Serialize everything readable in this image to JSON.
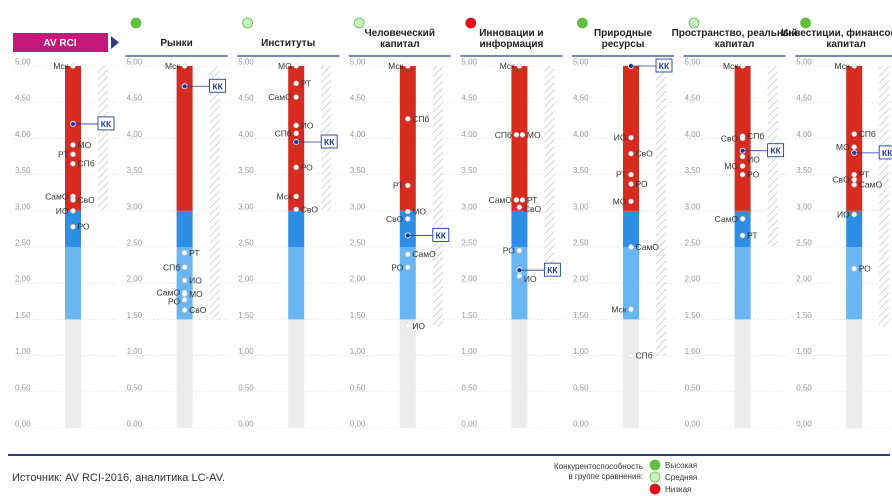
{
  "chart_data": {
    "type": "range-dot",
    "badge": "AV RCI",
    "ylim": [
      0,
      5
    ],
    "yticks": [
      "0,00",
      "0,50",
      "1,00",
      "1,50",
      "2,00",
      "2,50",
      "3,00",
      "3,50",
      "4,00",
      "4,50",
      "5,00"
    ],
    "bands": [
      {
        "from": 0,
        "to": 1.5,
        "color": "#ececec",
        "level": "low"
      },
      {
        "from": 1.5,
        "to": 2.5,
        "color": "#6ab6f2",
        "level": "medium-low"
      },
      {
        "from": 2.5,
        "to": 3.0,
        "color": "#2e8ee6",
        "level": "medium"
      },
      {
        "from": 3.0,
        "to": 5.0,
        "color": "#d62c1f",
        "level": "high"
      }
    ],
    "panels": [
      {
        "title": "",
        "status": null,
        "scale": [
          3.0,
          5.0
        ],
        "points": [
          {
            "label": "Мск",
            "value": 5.0,
            "side": "left"
          },
          {
            "label": "КК",
            "value": 4.2,
            "side": "right",
            "highlight": true
          },
          {
            "label": "МО",
            "value": 3.91,
            "side": "right"
          },
          {
            "label": "РТ",
            "value": 3.78,
            "side": "left"
          },
          {
            "label": "СПб",
            "value": 3.65,
            "side": "right"
          },
          {
            "label": "СамО",
            "value": 3.2,
            "side": "left"
          },
          {
            "label": "СвО",
            "value": 3.15,
            "side": "right"
          },
          {
            "label": "ИО",
            "value": 3.0,
            "side": "left"
          },
          {
            "label": "РО",
            "value": 2.78,
            "side": "right"
          }
        ]
      },
      {
        "title": "Рынки",
        "status": "high",
        "scale": [
          1.5,
          5.0
        ],
        "points": [
          {
            "label": "Мск",
            "value": 5.0,
            "side": "left"
          },
          {
            "label": "КК",
            "value": 4.72,
            "side": "right",
            "highlight": true
          },
          {
            "label": "РТ",
            "value": 2.42,
            "side": "right"
          },
          {
            "label": "СПб",
            "value": 2.22,
            "side": "left"
          },
          {
            "label": "ИО",
            "value": 2.04,
            "side": "right"
          },
          {
            "label": "СамО",
            "value": 1.87,
            "side": "left"
          },
          {
            "label": "МО",
            "value": 1.85,
            "side": "right"
          },
          {
            "label": "РО",
            "value": 1.77,
            "side": "left"
          },
          {
            "label": "СвО",
            "value": 1.63,
            "side": "right"
          }
        ]
      },
      {
        "title": "Институты",
        "status": "medium",
        "scale": [
          3.0,
          5.0
        ],
        "points": [
          {
            "label": "МО",
            "value": 5.0,
            "side": "left"
          },
          {
            "label": "РТ",
            "value": 4.76,
            "side": "right"
          },
          {
            "label": "СамО",
            "value": 4.57,
            "side": "left"
          },
          {
            "label": "ИО",
            "value": 4.18,
            "side": "right"
          },
          {
            "label": "СПб",
            "value": 4.07,
            "side": "left"
          },
          {
            "label": "КК",
            "value": 3.95,
            "side": "right",
            "highlight": true
          },
          {
            "label": "РО",
            "value": 3.6,
            "side": "right"
          },
          {
            "label": "Мск",
            "value": 3.2,
            "side": "left"
          },
          {
            "label": "СвО",
            "value": 3.02,
            "side": "right"
          }
        ]
      },
      {
        "title": "Человеческий капитал",
        "status": "medium",
        "scale": [
          1.4,
          5.0
        ],
        "points": [
          {
            "label": "Мск",
            "value": 5.0,
            "side": "left"
          },
          {
            "label": "СПб",
            "value": 4.27,
            "side": "right"
          },
          {
            "label": "РТ",
            "value": 3.35,
            "side": "left"
          },
          {
            "label": "МО",
            "value": 2.99,
            "side": "right"
          },
          {
            "label": "СвО",
            "value": 2.89,
            "side": "left"
          },
          {
            "label": "КК",
            "value": 2.66,
            "side": "right",
            "highlight": true
          },
          {
            "label": "СамО",
            "value": 2.4,
            "side": "right"
          },
          {
            "label": "РО",
            "value": 2.22,
            "side": "left"
          },
          {
            "label": "ИО",
            "value": 1.41,
            "side": "right"
          }
        ]
      },
      {
        "title": "Инновации и информация",
        "status": "low",
        "scale": [
          2.1,
          5.0
        ],
        "points": [
          {
            "label": "Мск",
            "value": 5.0,
            "side": "left"
          },
          {
            "label": "СПб",
            "value": 4.05,
            "side": "left"
          },
          {
            "label": "МО",
            "value": 4.05,
            "side": "right"
          },
          {
            "label": "СамО",
            "value": 3.15,
            "side": "left"
          },
          {
            "label": "РТ",
            "value": 3.15,
            "side": "right"
          },
          {
            "label": "СвО",
            "value": 3.05,
            "side": "right"
          },
          {
            "label": "РО",
            "value": 2.45,
            "side": "left"
          },
          {
            "label": "КК",
            "value": 2.18,
            "side": "right",
            "highlight": true
          },
          {
            "label": "ИО",
            "value": 2.1,
            "side": "right"
          }
        ]
      },
      {
        "title": "Природные ресурсы",
        "status": "high",
        "scale": [
          1.0,
          5.0
        ],
        "points": [
          {
            "label": "КК",
            "value": 5.0,
            "side": "right",
            "highlight": true
          },
          {
            "label": "ИО",
            "value": 4.01,
            "side": "left"
          },
          {
            "label": "СвО",
            "value": 3.79,
            "side": "right"
          },
          {
            "label": "РТ",
            "value": 3.5,
            "side": "left"
          },
          {
            "label": "РО",
            "value": 3.37,
            "side": "right"
          },
          {
            "label": "МО",
            "value": 3.13,
            "side": "left"
          },
          {
            "label": "СамО",
            "value": 2.5,
            "side": "right"
          },
          {
            "label": "Мск",
            "value": 1.64,
            "side": "left"
          },
          {
            "label": "СПб",
            "value": 1.0,
            "side": "right"
          }
        ]
      },
      {
        "title": "Пространство, реальный капитал",
        "status": "medium",
        "scale": [
          2.5,
          5.0
        ],
        "points": [
          {
            "label": "Мск",
            "value": 5.0,
            "side": "left"
          },
          {
            "label": "СПб",
            "value": 4.03,
            "side": "right"
          },
          {
            "label": "СвО",
            "value": 4.0,
            "side": "left"
          },
          {
            "label": "КК",
            "value": 3.83,
            "side": "right",
            "highlight": true
          },
          {
            "label": "ИО",
            "value": 3.75,
            "side": "right"
          },
          {
            "label": "МО",
            "value": 3.62,
            "side": "left"
          },
          {
            "label": "РО",
            "value": 3.5,
            "side": "right"
          },
          {
            "label": "СамО",
            "value": 2.89,
            "side": "left"
          },
          {
            "label": "РТ",
            "value": 2.66,
            "side": "right"
          }
        ]
      },
      {
        "title": "Инвестиции, финансовый капитал",
        "status": "high",
        "scale": [
          1.4,
          5.0
        ],
        "points": [
          {
            "label": "Мск",
            "value": 5.0,
            "side": "left"
          },
          {
            "label": "СПб",
            "value": 4.06,
            "side": "right"
          },
          {
            "label": "МО",
            "value": 3.88,
            "side": "left"
          },
          {
            "label": "КК",
            "value": 3.8,
            "side": "right",
            "highlight": true
          },
          {
            "label": "РТ",
            "value": 3.5,
            "side": "right"
          },
          {
            "label": "СвО",
            "value": 3.43,
            "side": "left"
          },
          {
            "label": "СамО",
            "value": 3.36,
            "side": "right"
          },
          {
            "label": "ИО",
            "value": 2.95,
            "side": "left"
          },
          {
            "label": "РО",
            "value": 2.2,
            "side": "right"
          }
        ]
      }
    ],
    "legend": {
      "title": "Конкурентоспособность в группе сравнения:",
      "items": [
        {
          "label": "Высокая",
          "color": "#5fbf3f",
          "key": "high"
        },
        {
          "label": "Средняя",
          "color": "#c9efc6",
          "key": "medium"
        },
        {
          "label": "Низкая",
          "color": "#e60f1e",
          "key": "low"
        }
      ]
    },
    "source": "Источник: AV RCI-2016, аналитика LC-AV."
  }
}
